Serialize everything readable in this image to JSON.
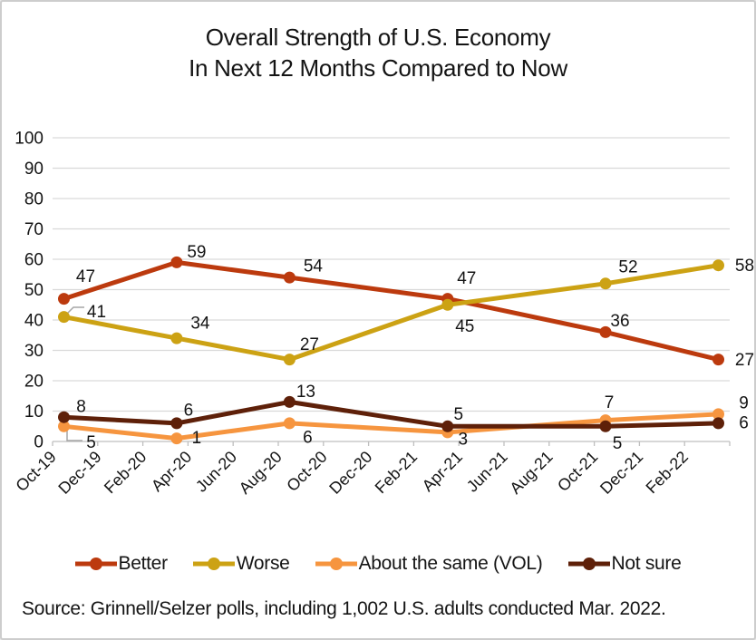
{
  "title": {
    "line1": "Overall Strength of U.S. Economy",
    "line2": "In Next 12 Months Compared to Now"
  },
  "source_note": "Source: Grinnell/Selzer polls, including 1,002 U.S. adults conducted Mar. 2022.",
  "colors": {
    "frame_border": "#cdcdcd",
    "background": "#ffffff",
    "text": "#141414",
    "gridline": "#d9d9d9",
    "axis_line": "#bfbfbf",
    "leader_line": "#a6a6a6"
  },
  "chart_data": {
    "type": "line",
    "title": "Overall Strength of U.S. Economy In Next 12 Months Compared to Now",
    "x_tick_labels": [
      "Oct-19",
      "Dec-19",
      "Feb-20",
      "Apr-20",
      "Jun-20",
      "Aug-20",
      "Oct-20",
      "Dec-20",
      "Feb-21",
      "Apr-21",
      "Jun-21",
      "Aug-21",
      "Oct-21",
      "Dec-21",
      "Feb-22"
    ],
    "point_dates": [
      "Oct-19",
      "Mar-20",
      "Aug-20",
      "Mar-21",
      "Oct-21",
      "Mar-22"
    ],
    "poll_months_from_axis_start": [
      0.5,
      5.5,
      10.5,
      17.5,
      24.5,
      29.5
    ],
    "x_axis_months_span": 30,
    "x_tick_month_interval": 2,
    "ylim": [
      0,
      100
    ],
    "y_tick_labels": [
      "0",
      "10",
      "20",
      "30",
      "40",
      "50",
      "60",
      "70",
      "80",
      "90",
      "100"
    ],
    "grid": "horizontal",
    "legend_position": "bottom",
    "series": [
      {
        "name": "Better",
        "color": "#bc3a0e",
        "values": [
          47,
          59,
          54,
          47,
          36,
          27
        ],
        "label_offsets": [
          [
            24,
            -25
          ],
          [
            22,
            -12
          ],
          [
            26,
            -13
          ],
          [
            21,
            -23
          ],
          [
            16,
            -13
          ],
          [
            29,
            0
          ]
        ]
      },
      {
        "name": "Worse",
        "color": "#cca214",
        "values": [
          41,
          34,
          27,
          45,
          52,
          58
        ],
        "label_offsets": [
          [
            36,
            -6
          ],
          [
            26,
            -17
          ],
          [
            22,
            -17
          ],
          [
            19,
            23
          ],
          [
            25,
            -19
          ],
          [
            29,
            0
          ]
        ]
      },
      {
        "name": "About the same (VOL)",
        "color": "#f6953f",
        "values": [
          5,
          1,
          6,
          3,
          7,
          9
        ],
        "label_offsets": [
          [
            30,
            17
          ],
          [
            22,
            -1
          ],
          [
            20,
            15
          ],
          [
            17,
            7
          ],
          [
            4,
            -20
          ],
          [
            28,
            -13
          ]
        ]
      },
      {
        "name": "Not sure",
        "color": "#5e2009",
        "values": [
          8,
          6,
          13,
          5,
          5,
          6
        ],
        "label_offsets": [
          [
            19,
            -12
          ],
          [
            13,
            -15
          ],
          [
            18,
            -12
          ],
          [
            12,
            -14
          ],
          [
            13,
            18
          ],
          [
            28,
            -1
          ]
        ]
      }
    ]
  }
}
